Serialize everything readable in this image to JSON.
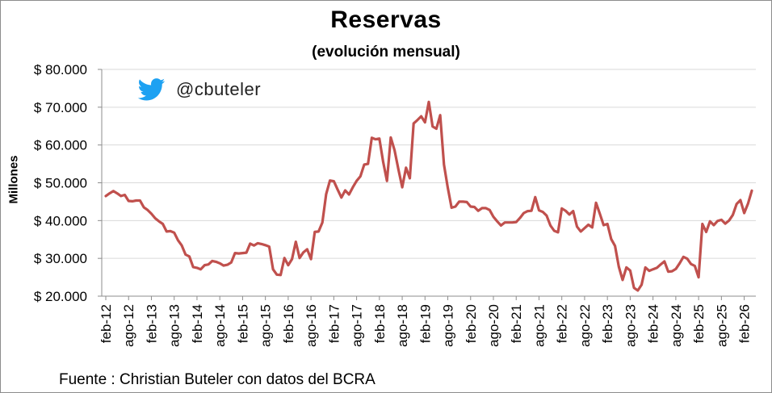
{
  "title": "Reservas",
  "subtitle": "(evolución mensual)",
  "source": "Fuente : Christian Buteler con datos del BCRA",
  "watermark": {
    "handle": "@cbuteler",
    "icon": "twitter-bird-icon",
    "icon_color": "#1DA1F2"
  },
  "chart_data": {
    "type": "line",
    "title": "Reservas",
    "subtitle": "(evolución mensual)",
    "xlabel": "",
    "ylabel": "Millones",
    "ylim": [
      20000,
      80000
    ],
    "yticks": [
      20000,
      30000,
      40000,
      50000,
      60000,
      70000,
      80000
    ],
    "ytick_labels": [
      "$ 20.000",
      "$ 30.000",
      "$ 40.000",
      "$ 50.000",
      "$ 60.000",
      "$ 70.000",
      "$ 80.000"
    ],
    "grid": true,
    "line_color": "#c0504d",
    "x_start": "feb-12",
    "xtick_labels": [
      "feb-12",
      "ago-12",
      "feb-13",
      "ago-13",
      "feb-14",
      "ago-14",
      "feb-15",
      "ago-15",
      "feb-16",
      "ago-16",
      "feb-17",
      "ago-17",
      "feb-18",
      "ago-18",
      "feb-19",
      "ago-19",
      "feb-20",
      "ago-20",
      "feb-21",
      "ago-21",
      "feb-22",
      "ago-22",
      "feb-23",
      "ago-23",
      "feb-24",
      "ago-24",
      "feb-25",
      "ago-25",
      "feb-26"
    ],
    "series": [
      {
        "values": [
          46500,
          47200,
          47800,
          47200,
          46500,
          46800,
          45200,
          45100,
          45300,
          45300,
          43500,
          42800,
          41800,
          40600,
          39800,
          39100,
          37100,
          37200,
          36800,
          34800,
          33400,
          31000,
          30500,
          27700,
          27500,
          27100,
          28200,
          28400,
          29300,
          29100,
          28700,
          28100,
          28300,
          28900,
          31400,
          31300,
          31400,
          31500,
          33900,
          33400,
          34000,
          33800,
          33500,
          33100,
          27100,
          25700,
          25600,
          30100,
          28200,
          29800,
          34400,
          30100,
          31600,
          32400,
          29800,
          37000,
          37100,
          39500,
          47000,
          50600,
          50400,
          48200,
          46100,
          48000,
          46900,
          48800,
          50500,
          51700,
          54800,
          55000,
          61900,
          61500,
          61700,
          55500,
          50500,
          62000,
          58600,
          53500,
          48800,
          54000,
          51200,
          65700,
          66600,
          67600,
          66000,
          71400,
          64900,
          64300,
          67900,
          54800,
          48700,
          43400,
          43700,
          45000,
          45000,
          44900,
          43700,
          43600,
          42600,
          43300,
          43300,
          42800,
          41000,
          39800,
          38700,
          39500,
          39500,
          39500,
          39600,
          40700,
          42000,
          42500,
          42600,
          46200,
          42700,
          42300,
          41300,
          38700,
          37300,
          36900,
          43200,
          42600,
          41600,
          42500,
          38400,
          37100,
          38000,
          38900,
          38200,
          44700,
          41800,
          38800,
          39100,
          35100,
          33300,
          27800,
          24300,
          27600,
          26800,
          22200,
          21500,
          23000,
          27600,
          26700,
          27100,
          27500,
          28400,
          29200,
          26500,
          26600,
          27200,
          28700,
          30400,
          29900,
          28500,
          28000,
          25000,
          39100,
          37000,
          39800,
          38800,
          39900,
          40200,
          39200,
          40000,
          41500,
          44400,
          45400,
          42000,
          44500,
          47900
        ]
      }
    ]
  }
}
